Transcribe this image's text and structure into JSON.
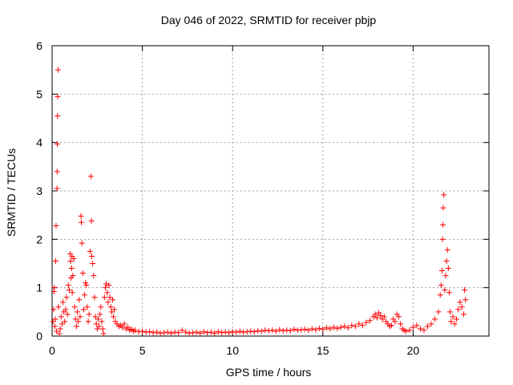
{
  "chart_data": {
    "type": "scatter",
    "title": "Day 046 of 2022, SRMTID for receiver pbjp",
    "xlabel": "GPS time / hours",
    "ylabel": "SRMTID / TECUs",
    "xlim": [
      0,
      24.2
    ],
    "ylim": [
      0,
      6
    ],
    "xticks": [
      0,
      5,
      10,
      15,
      20
    ],
    "yticks": [
      0,
      1,
      2,
      3,
      4,
      5,
      6
    ],
    "grid": true,
    "marker": "+",
    "color": "#ff0000",
    "series": [
      {
        "name": "SRMTID",
        "points": [
          [
            0.05,
            0.3
          ],
          [
            0.08,
            0.55
          ],
          [
            0.1,
            0.92
          ],
          [
            0.12,
            1.0
          ],
          [
            0.15,
            0.2
          ],
          [
            0.18,
            0.35
          ],
          [
            0.2,
            1.55
          ],
          [
            0.22,
            2.28
          ],
          [
            0.25,
            0.1
          ],
          [
            0.27,
            3.05
          ],
          [
            0.28,
            3.4
          ],
          [
            0.29,
            3.97
          ],
          [
            0.3,
            4.55
          ],
          [
            0.31,
            4.95
          ],
          [
            0.33,
            5.5
          ],
          [
            0.35,
            0.6
          ],
          [
            0.4,
            0.05
          ],
          [
            0.45,
            0.15
          ],
          [
            0.5,
            0.4
          ],
          [
            0.55,
            0.25
          ],
          [
            0.6,
            0.7
          ],
          [
            0.65,
            0.5
          ],
          [
            0.7,
            0.3
          ],
          [
            0.75,
            0.55
          ],
          [
            0.8,
            0.8
          ],
          [
            0.85,
            0.45
          ],
          [
            0.9,
            1.05
          ],
          [
            0.95,
            0.95
          ],
          [
            1.0,
            1.7
          ],
          [
            1.02,
            1.55
          ],
          [
            1.05,
            1.2
          ],
          [
            1.08,
            1.4
          ],
          [
            1.1,
            1.65
          ],
          [
            1.12,
            0.9
          ],
          [
            1.15,
            1.25
          ],
          [
            1.2,
            1.6
          ],
          [
            1.25,
            0.6
          ],
          [
            1.3,
            0.35
          ],
          [
            1.35,
            0.2
          ],
          [
            1.4,
            0.5
          ],
          [
            1.45,
            0.3
          ],
          [
            1.5,
            0.75
          ],
          [
            1.55,
            0.4
          ],
          [
            1.6,
            2.48
          ],
          [
            1.62,
            2.35
          ],
          [
            1.65,
            1.92
          ],
          [
            1.7,
            1.3
          ],
          [
            1.75,
            0.55
          ],
          [
            1.8,
            0.85
          ],
          [
            1.85,
            1.1
          ],
          [
            1.9,
            1.05
          ],
          [
            1.95,
            0.6
          ],
          [
            2.0,
            0.3
          ],
          [
            2.05,
            0.45
          ],
          [
            2.1,
            1.75
          ],
          [
            2.15,
            3.3
          ],
          [
            2.18,
            2.38
          ],
          [
            2.2,
            1.65
          ],
          [
            2.25,
            1.5
          ],
          [
            2.3,
            1.25
          ],
          [
            2.35,
            0.8
          ],
          [
            2.4,
            0.4
          ],
          [
            2.45,
            0.25
          ],
          [
            2.5,
            0.15
          ],
          [
            2.55,
            0.35
          ],
          [
            2.6,
            0.2
          ],
          [
            2.65,
            0.45
          ],
          [
            2.7,
            0.6
          ],
          [
            2.75,
            0.3
          ],
          [
            2.8,
            0.15
          ],
          [
            2.85,
            0.05
          ],
          [
            2.9,
            0.8
          ],
          [
            2.95,
            1.0
          ],
          [
            3.0,
            1.08
          ],
          [
            3.05,
            0.9
          ],
          [
            3.1,
            0.7
          ],
          [
            3.15,
            1.05
          ],
          [
            3.2,
            0.8
          ],
          [
            3.25,
            0.6
          ],
          [
            3.3,
            0.5
          ],
          [
            3.35,
            0.75
          ],
          [
            3.4,
            0.4
          ],
          [
            3.45,
            0.55
          ],
          [
            3.5,
            0.3
          ],
          [
            3.6,
            0.25
          ],
          [
            3.7,
            0.2
          ],
          [
            3.8,
            0.22
          ],
          [
            3.9,
            0.18
          ],
          [
            4.0,
            0.25
          ],
          [
            4.1,
            0.15
          ],
          [
            4.2,
            0.18
          ],
          [
            4.3,
            0.12
          ],
          [
            4.4,
            0.14
          ],
          [
            4.5,
            0.1
          ],
          [
            4.6,
            0.12
          ],
          [
            4.8,
            0.09
          ],
          [
            5.0,
            0.1
          ],
          [
            5.2,
            0.08
          ],
          [
            5.4,
            0.09
          ],
          [
            5.6,
            0.07
          ],
          [
            5.8,
            0.08
          ],
          [
            6.0,
            0.06
          ],
          [
            6.2,
            0.07
          ],
          [
            6.4,
            0.08
          ],
          [
            6.6,
            0.06
          ],
          [
            6.8,
            0.08
          ],
          [
            7.0,
            0.07
          ],
          [
            7.2,
            0.12
          ],
          [
            7.4,
            0.08
          ],
          [
            7.6,
            0.06
          ],
          [
            7.8,
            0.07
          ],
          [
            8.0,
            0.08
          ],
          [
            8.2,
            0.06
          ],
          [
            8.4,
            0.09
          ],
          [
            8.6,
            0.07
          ],
          [
            8.8,
            0.08
          ],
          [
            9.0,
            0.06
          ],
          [
            9.2,
            0.09
          ],
          [
            9.4,
            0.07
          ],
          [
            9.6,
            0.08
          ],
          [
            9.8,
            0.07
          ],
          [
            10.0,
            0.09
          ],
          [
            10.2,
            0.08
          ],
          [
            10.4,
            0.1
          ],
          [
            10.6,
            0.08
          ],
          [
            10.8,
            0.09
          ],
          [
            11.0,
            0.1
          ],
          [
            11.2,
            0.09
          ],
          [
            11.4,
            0.11
          ],
          [
            11.6,
            0.1
          ],
          [
            11.8,
            0.12
          ],
          [
            12.0,
            0.11
          ],
          [
            12.2,
            0.12
          ],
          [
            12.4,
            0.1
          ],
          [
            12.6,
            0.13
          ],
          [
            12.8,
            0.11
          ],
          [
            13.0,
            0.12
          ],
          [
            13.2,
            0.11
          ],
          [
            13.4,
            0.14
          ],
          [
            13.6,
            0.12
          ],
          [
            13.8,
            0.13
          ],
          [
            14.0,
            0.14
          ],
          [
            14.2,
            0.12
          ],
          [
            14.4,
            0.15
          ],
          [
            14.6,
            0.13
          ],
          [
            14.8,
            0.16
          ],
          [
            15.0,
            0.14
          ],
          [
            15.2,
            0.17
          ],
          [
            15.4,
            0.15
          ],
          [
            15.6,
            0.18
          ],
          [
            15.8,
            0.16
          ],
          [
            16.0,
            0.18
          ],
          [
            16.2,
            0.2
          ],
          [
            16.4,
            0.17
          ],
          [
            16.6,
            0.22
          ],
          [
            16.8,
            0.2
          ],
          [
            17.0,
            0.25
          ],
          [
            17.2,
            0.22
          ],
          [
            17.4,
            0.28
          ],
          [
            17.6,
            0.32
          ],
          [
            17.8,
            0.4
          ],
          [
            17.9,
            0.45
          ],
          [
            18.0,
            0.38
          ],
          [
            18.1,
            0.48
          ],
          [
            18.2,
            0.42
          ],
          [
            18.3,
            0.35
          ],
          [
            18.4,
            0.4
          ],
          [
            18.5,
            0.3
          ],
          [
            18.6,
            0.25
          ],
          [
            18.7,
            0.2
          ],
          [
            18.8,
            0.22
          ],
          [
            18.9,
            0.35
          ],
          [
            19.0,
            0.3
          ],
          [
            19.1,
            0.45
          ],
          [
            19.2,
            0.4
          ],
          [
            19.3,
            0.25
          ],
          [
            19.4,
            0.15
          ],
          [
            19.5,
            0.12
          ],
          [
            19.6,
            0.1
          ],
          [
            19.8,
            0.12
          ],
          [
            20.0,
            0.18
          ],
          [
            20.2,
            0.22
          ],
          [
            20.4,
            0.15
          ],
          [
            20.6,
            0.12
          ],
          [
            20.8,
            0.2
          ],
          [
            21.0,
            0.25
          ],
          [
            21.2,
            0.35
          ],
          [
            21.4,
            0.5
          ],
          [
            21.5,
            0.85
          ],
          [
            21.55,
            1.05
          ],
          [
            21.6,
            1.35
          ],
          [
            21.63,
            2.0
          ],
          [
            21.65,
            2.3
          ],
          [
            21.67,
            2.65
          ],
          [
            21.7,
            2.92
          ],
          [
            21.75,
            0.95
          ],
          [
            21.8,
            1.25
          ],
          [
            21.85,
            1.55
          ],
          [
            21.9,
            1.78
          ],
          [
            21.95,
            1.4
          ],
          [
            22.0,
            0.9
          ],
          [
            22.05,
            0.5
          ],
          [
            22.1,
            0.3
          ],
          [
            22.2,
            0.4
          ],
          [
            22.3,
            0.25
          ],
          [
            22.4,
            0.35
          ],
          [
            22.5,
            0.55
          ],
          [
            22.6,
            0.7
          ],
          [
            22.7,
            0.6
          ],
          [
            22.8,
            0.45
          ],
          [
            22.85,
            0.95
          ],
          [
            22.9,
            0.75
          ]
        ]
      }
    ]
  }
}
